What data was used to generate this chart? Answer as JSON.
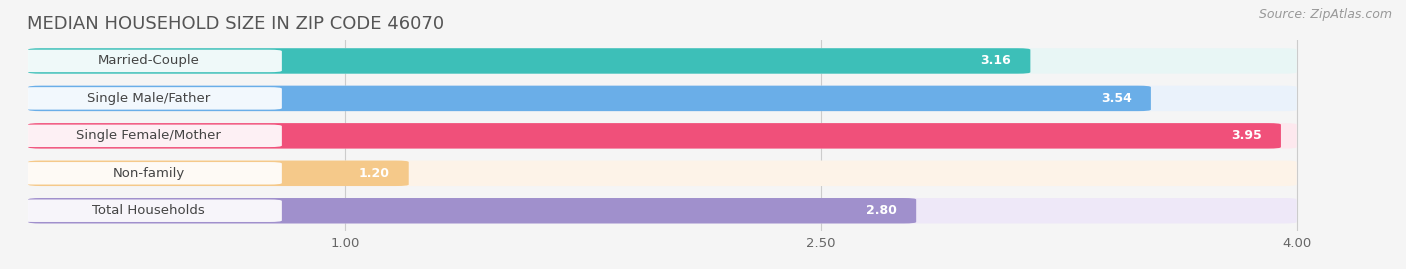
{
  "title": "MEDIAN HOUSEHOLD SIZE IN ZIP CODE 46070",
  "source": "Source: ZipAtlas.com",
  "categories": [
    "Married-Couple",
    "Single Male/Father",
    "Single Female/Mother",
    "Non-family",
    "Total Households"
  ],
  "values": [
    3.16,
    3.54,
    3.95,
    1.2,
    2.8
  ],
  "bar_colors": [
    "#3DBFB8",
    "#6AAEE8",
    "#F0507A",
    "#F5C98A",
    "#A090CC"
  ],
  "bar_bg_colors": [
    "#E8F6F5",
    "#EAF2FB",
    "#FDE8EE",
    "#FDF3E8",
    "#EEE8F8"
  ],
  "xlim": [
    0,
    4.3
  ],
  "xmin": 0,
  "xmax": 4.0,
  "xticks": [
    1.0,
    2.5,
    4.0
  ],
  "title_fontsize": 13,
  "source_fontsize": 9,
  "label_fontsize": 9.5,
  "value_fontsize": 9,
  "background_color": "#f5f5f5"
}
